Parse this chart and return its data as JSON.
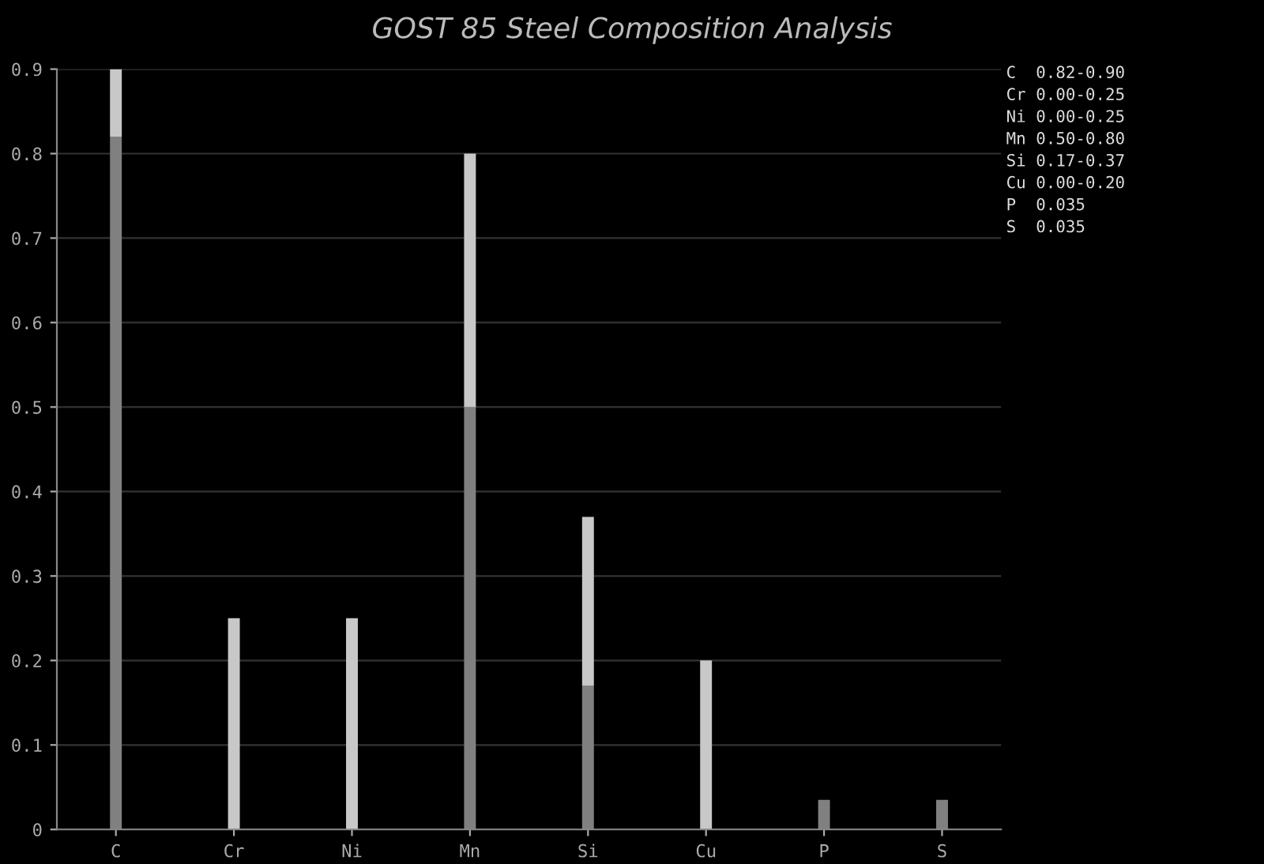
{
  "chart_data": {
    "type": "bar",
    "title": "GOST 85 Steel Composition Analysis",
    "categories": [
      "C",
      "Cr",
      "Ni",
      "Mn",
      "Si",
      "Cu",
      "P",
      "S"
    ],
    "stacked": true,
    "series": [
      {
        "color": "#808080",
        "values": [
          0.82,
          0,
          0,
          0.5,
          0.17,
          0,
          0.035,
          0.035
        ]
      },
      {
        "color": "#c8c8c8",
        "values": [
          0.08,
          0.25,
          0.25,
          0.3,
          0.2,
          0.2,
          0,
          0
        ]
      }
    ],
    "ylim": [
      0,
      0.9
    ],
    "yticks": [
      0,
      0.1,
      0.2,
      0.3,
      0.4,
      0.5,
      0.6,
      0.7,
      0.8,
      0.9
    ],
    "grid": "y",
    "legend": false,
    "annotations": [
      "C  0.82-0.90",
      "Cr 0.00-0.25",
      "Ni 0.00-0.25",
      "Mn 0.50-0.80",
      "Si 0.17-0.37",
      "Cu 0.00-0.20",
      "P  0.035",
      "S  0.035"
    ]
  }
}
